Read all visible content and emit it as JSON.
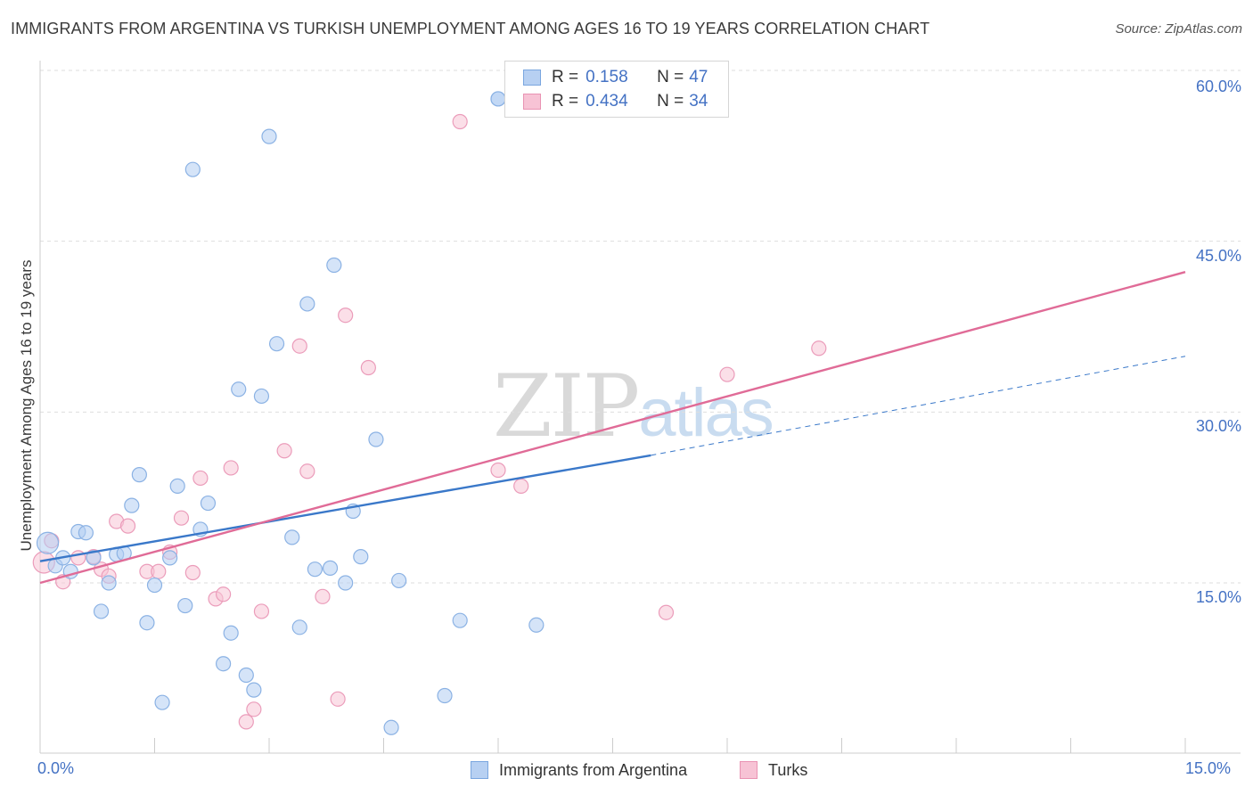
{
  "header": {
    "title": "IMMIGRANTS FROM ARGENTINA VS TURKISH UNEMPLOYMENT AMONG AGES 16 TO 19 YEARS CORRELATION CHART",
    "source": "Source: ZipAtlas.com"
  },
  "watermark": {
    "zip": "ZIP",
    "atlas": "atlas"
  },
  "legend": {
    "r_label": "R =",
    "n_label": "N =",
    "rows": [
      {
        "r": "0.158",
        "n": "47",
        "color": "#b7d0f2",
        "border": "#7aa6df"
      },
      {
        "r": "0.434",
        "n": "34",
        "color": "#f7c3d5",
        "border": "#e993b3"
      }
    ]
  },
  "colors": {
    "blue_line": "#3a78c9",
    "pink_line": "#e06b97",
    "blue_fill": "rgba(178, 206, 242, 0.55)",
    "blue_stroke": "#8bb2e4",
    "pink_fill": "rgba(247, 196, 214, 0.55)",
    "pink_stroke": "#eb9cba",
    "grid": "#dedede",
    "axis_text": "#4472c4"
  },
  "chart_data": {
    "type": "scatter",
    "title": "IMMIGRANTS FROM ARGENTINA VS TURKISH UNEMPLOYMENT AMONG AGES 16 TO 19 YEARS CORRELATION CHART",
    "xlabel": "",
    "ylabel": "Unemployment Among Ages 16 to 19 years",
    "xlim": [
      0,
      15
    ],
    "ylim": [
      0,
      60
    ],
    "x_ticks": [
      "0.0%",
      "15.0%"
    ],
    "y_ticks": [
      "15.0%",
      "30.0%",
      "45.0%",
      "60.0%"
    ],
    "y_tick_values": [
      15,
      30,
      45,
      60
    ],
    "series": [
      {
        "name": "Immigrants from Argentina",
        "R": 0.158,
        "N": 47,
        "trend": {
          "x0": 0,
          "y0": 16.9,
          "x1": 8.0,
          "y1": 26.2,
          "dashed_to_x": 15,
          "dashed_to_y": 34.9
        },
        "points": [
          [
            0.1,
            18.5
          ],
          [
            0.2,
            16.5
          ],
          [
            0.3,
            17.2
          ],
          [
            0.4,
            16.0
          ],
          [
            0.5,
            19.5
          ],
          [
            0.6,
            19.4
          ],
          [
            0.7,
            17.2
          ],
          [
            0.8,
            12.5
          ],
          [
            0.9,
            15.0
          ],
          [
            1.0,
            17.5
          ],
          [
            1.1,
            17.6
          ],
          [
            1.2,
            21.8
          ],
          [
            1.3,
            24.5
          ],
          [
            1.4,
            11.5
          ],
          [
            1.5,
            14.8
          ],
          [
            1.6,
            4.5
          ],
          [
            1.7,
            17.2
          ],
          [
            1.8,
            23.5
          ],
          [
            1.9,
            13.0
          ],
          [
            2.0,
            51.3
          ],
          [
            2.1,
            19.7
          ],
          [
            2.2,
            22.0
          ],
          [
            2.4,
            7.9
          ],
          [
            2.5,
            10.6
          ],
          [
            2.6,
            32.0
          ],
          [
            2.7,
            6.9
          ],
          [
            2.8,
            5.6
          ],
          [
            2.9,
            31.4
          ],
          [
            3.0,
            54.2
          ],
          [
            3.1,
            36.0
          ],
          [
            3.3,
            19.0
          ],
          [
            3.4,
            11.1
          ],
          [
            3.5,
            39.5
          ],
          [
            3.6,
            16.2
          ],
          [
            3.8,
            16.3
          ],
          [
            3.85,
            42.9
          ],
          [
            4.0,
            15.0
          ],
          [
            4.1,
            21.3
          ],
          [
            4.2,
            17.3
          ],
          [
            4.4,
            27.6
          ],
          [
            4.6,
            2.3
          ],
          [
            4.7,
            15.2
          ],
          [
            5.3,
            5.1
          ],
          [
            5.5,
            11.7
          ],
          [
            6.0,
            57.5
          ],
          [
            6.5,
            11.3
          ],
          [
            6.0,
            57.5
          ]
        ]
      },
      {
        "name": "Turks",
        "R": 0.434,
        "N": 34,
        "trend": {
          "x0": 0,
          "y0": 15.0,
          "x1": 15,
          "y1": 42.3
        },
        "points": [
          [
            0.05,
            16.8
          ],
          [
            0.15,
            18.7
          ],
          [
            0.3,
            15.1
          ],
          [
            0.5,
            17.2
          ],
          [
            0.7,
            17.3
          ],
          [
            0.8,
            16.2
          ],
          [
            0.9,
            15.6
          ],
          [
            1.0,
            20.4
          ],
          [
            1.15,
            20.0
          ],
          [
            1.4,
            16.0
          ],
          [
            1.55,
            16.0
          ],
          [
            1.7,
            17.7
          ],
          [
            1.85,
            20.7
          ],
          [
            2.0,
            15.9
          ],
          [
            2.1,
            24.2
          ],
          [
            2.3,
            13.6
          ],
          [
            2.4,
            14.0
          ],
          [
            2.5,
            25.1
          ],
          [
            2.7,
            2.8
          ],
          [
            2.8,
            3.9
          ],
          [
            2.9,
            12.5
          ],
          [
            3.2,
            26.6
          ],
          [
            3.4,
            35.8
          ],
          [
            3.5,
            24.8
          ],
          [
            3.7,
            13.8
          ],
          [
            3.9,
            4.8
          ],
          [
            4.0,
            38.5
          ],
          [
            4.3,
            33.9
          ],
          [
            5.5,
            55.5
          ],
          [
            6.0,
            24.9
          ],
          [
            6.3,
            23.5
          ],
          [
            8.2,
            12.4
          ],
          [
            9.0,
            33.3
          ],
          [
            10.2,
            35.6
          ]
        ]
      }
    ]
  },
  "bottom_legend": {
    "items": [
      {
        "label": "Immigrants from Argentina"
      },
      {
        "label": "Turks"
      }
    ]
  }
}
